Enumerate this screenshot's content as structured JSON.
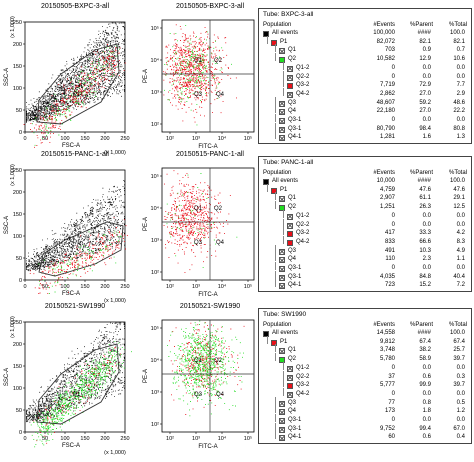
{
  "colors": {
    "black": "#000000",
    "red": "#e8101a",
    "green": "#22dd22",
    "gate": "#333333"
  },
  "rows": [
    {
      "scatter_title": "20150505-BXPC-3-all",
      "quad_title": "20150505-BXPC-3-all",
      "tube": "Tube: BXPC-3-all",
      "red_level": 0.55,
      "green_level": 0.2,
      "table": [
        {
          "label": "All events",
          "indent": 0,
          "icon": "black",
          "events": "100,000",
          "parent": "####",
          "total": "100.0"
        },
        {
          "label": "P1",
          "indent": 1,
          "icon": "red",
          "events": "82,072",
          "parent": "82.1",
          "total": "82.1"
        },
        {
          "label": "Q1",
          "indent": 2,
          "icon": "x",
          "events": "703",
          "parent": "0.9",
          "total": "0.7"
        },
        {
          "label": "Q2",
          "indent": 2,
          "icon": "green",
          "events": "10,582",
          "parent": "12.9",
          "total": "10.6"
        },
        {
          "label": "Q1-2",
          "indent": 3,
          "icon": "x",
          "events": "0",
          "parent": "0.0",
          "total": "0.0"
        },
        {
          "label": "Q2-2",
          "indent": 3,
          "icon": "x",
          "events": "0",
          "parent": "0.0",
          "total": "0.0"
        },
        {
          "label": "Q3-2",
          "indent": 3,
          "icon": "red",
          "events": "7,719",
          "parent": "72.9",
          "total": "7.7"
        },
        {
          "label": "Q4-2",
          "indent": 3,
          "icon": "x",
          "events": "2,862",
          "parent": "27.0",
          "total": "2.9"
        },
        {
          "label": "Q3",
          "indent": 2,
          "icon": "x",
          "events": "48,607",
          "parent": "59.2",
          "total": "48.6"
        },
        {
          "label": "Q4",
          "indent": 2,
          "icon": "x",
          "events": "22,180",
          "parent": "27.0",
          "total": "22.2"
        },
        {
          "label": "Q3-1",
          "indent": 2,
          "icon": "x",
          "events": "0",
          "parent": "0.0",
          "total": "0.0"
        },
        {
          "label": "Q3-1",
          "indent": 2,
          "icon": "x",
          "events": "80,790",
          "parent": "98.4",
          "total": "80.8"
        },
        {
          "label": "Q4-1",
          "indent": 2,
          "icon": "x",
          "events": "1,281",
          "parent": "1.6",
          "total": "1.3"
        }
      ]
    },
    {
      "scatter_title": "20150515-PANC-1-all",
      "quad_title": "20150515-PANC-1-all",
      "tube": "Tube: PANC-1-all",
      "red_level": 0.4,
      "green_level": 0.1,
      "table": [
        {
          "label": "All events",
          "indent": 0,
          "icon": "black",
          "events": "10,000",
          "parent": "####",
          "total": "100.0"
        },
        {
          "label": "P1",
          "indent": 1,
          "icon": "red",
          "events": "4,759",
          "parent": "47.6",
          "total": "47.6"
        },
        {
          "label": "Q1",
          "indent": 2,
          "icon": "x",
          "events": "2,907",
          "parent": "61.1",
          "total": "29.1"
        },
        {
          "label": "Q2",
          "indent": 2,
          "icon": "green",
          "events": "1,251",
          "parent": "26.3",
          "total": "12.5"
        },
        {
          "label": "Q1-2",
          "indent": 3,
          "icon": "x",
          "events": "0",
          "parent": "0.0",
          "total": "0.0"
        },
        {
          "label": "Q2-2",
          "indent": 3,
          "icon": "x",
          "events": "0",
          "parent": "0.0",
          "total": "0.0"
        },
        {
          "label": "Q3-2",
          "indent": 3,
          "icon": "red",
          "events": "417",
          "parent": "33.3",
          "total": "4.2"
        },
        {
          "label": "Q4-2",
          "indent": 3,
          "icon": "red",
          "events": "833",
          "parent": "66.6",
          "total": "8.3"
        },
        {
          "label": "Q3",
          "indent": 2,
          "icon": "x",
          "events": "491",
          "parent": "10.3",
          "total": "4.9"
        },
        {
          "label": "Q4",
          "indent": 2,
          "icon": "x",
          "events": "110",
          "parent": "2.3",
          "total": "1.1"
        },
        {
          "label": "Q3-1",
          "indent": 2,
          "icon": "x",
          "events": "0",
          "parent": "0.0",
          "total": "0.0"
        },
        {
          "label": "Q3-1",
          "indent": 2,
          "icon": "x",
          "events": "4,035",
          "parent": "84.8",
          "total": "40.4"
        },
        {
          "label": "Q4-1",
          "indent": 2,
          "icon": "x",
          "events": "723",
          "parent": "15.2",
          "total": "7.2"
        }
      ]
    },
    {
      "scatter_title": "20150521-SW1990",
      "quad_title": "20150521-SW1990",
      "tube": "Tube: SW1990",
      "red_level": 0.6,
      "green_level": 0.75,
      "table": [
        {
          "label": "All events",
          "indent": 0,
          "icon": "black",
          "events": "14,558",
          "parent": "####",
          "total": "100.0"
        },
        {
          "label": "P1",
          "indent": 1,
          "icon": "red",
          "events": "9,812",
          "parent": "67.4",
          "total": "67.4"
        },
        {
          "label": "Q1",
          "indent": 2,
          "icon": "x",
          "events": "3,748",
          "parent": "38.2",
          "total": "25.7"
        },
        {
          "label": "Q2",
          "indent": 2,
          "icon": "green",
          "events": "5,780",
          "parent": "58.9",
          "total": "39.7"
        },
        {
          "label": "Q1-2",
          "indent": 3,
          "icon": "x",
          "events": "0",
          "parent": "0.0",
          "total": "0.0"
        },
        {
          "label": "Q2-2",
          "indent": 3,
          "icon": "x",
          "events": "37",
          "parent": "0.6",
          "total": "0.3"
        },
        {
          "label": "Q3-2",
          "indent": 3,
          "icon": "red",
          "events": "5,777",
          "parent": "99.9",
          "total": "39.7"
        },
        {
          "label": "Q4-2",
          "indent": 3,
          "icon": "x",
          "events": "0",
          "parent": "0.0",
          "total": "0.0"
        },
        {
          "label": "Q3",
          "indent": 2,
          "icon": "x",
          "events": "77",
          "parent": "0.8",
          "total": "0.5"
        },
        {
          "label": "Q4",
          "indent": 2,
          "icon": "x",
          "events": "173",
          "parent": "1.8",
          "total": "1.2"
        },
        {
          "label": "Q3-1",
          "indent": 2,
          "icon": "x",
          "events": "0",
          "parent": "0.0",
          "total": "0.0"
        },
        {
          "label": "Q3-1",
          "indent": 2,
          "icon": "x",
          "events": "9,752",
          "parent": "99.4",
          "total": "67.0"
        },
        {
          "label": "Q4-1",
          "indent": 2,
          "icon": "x",
          "events": "60",
          "parent": "0.6",
          "total": "0.4"
        }
      ]
    }
  ],
  "table_headers": {
    "population": "Population",
    "events": "#Events",
    "parent": "%Parent",
    "total": "%Total"
  },
  "chart_data": [
    {
      "type": "scatter",
      "xlabel": "FSC-A",
      "ylabel": "SSC-A",
      "x_unit": "(x 1,000)",
      "y_unit": "(x 1,000)",
      "xlim": [
        0,
        250
      ],
      "ylim": [
        0,
        250
      ],
      "x_ticks": [
        "0",
        "50",
        "100",
        "150",
        "200",
        "250"
      ],
      "y_ticks": [
        "0",
        "50",
        "100",
        "150",
        "200",
        "250"
      ],
      "gate": "P1"
    },
    {
      "type": "scatter",
      "xlabel": "FITC-A",
      "ylabel": "PE-A",
      "x_ticks": [
        "10²",
        "10³",
        "10⁴",
        "10⁵"
      ],
      "y_ticks": [
        "10²",
        "10³",
        "10⁴",
        "10⁵"
      ],
      "quadrants": [
        "Q1",
        "Q2",
        "Q3",
        "Q4"
      ]
    }
  ]
}
